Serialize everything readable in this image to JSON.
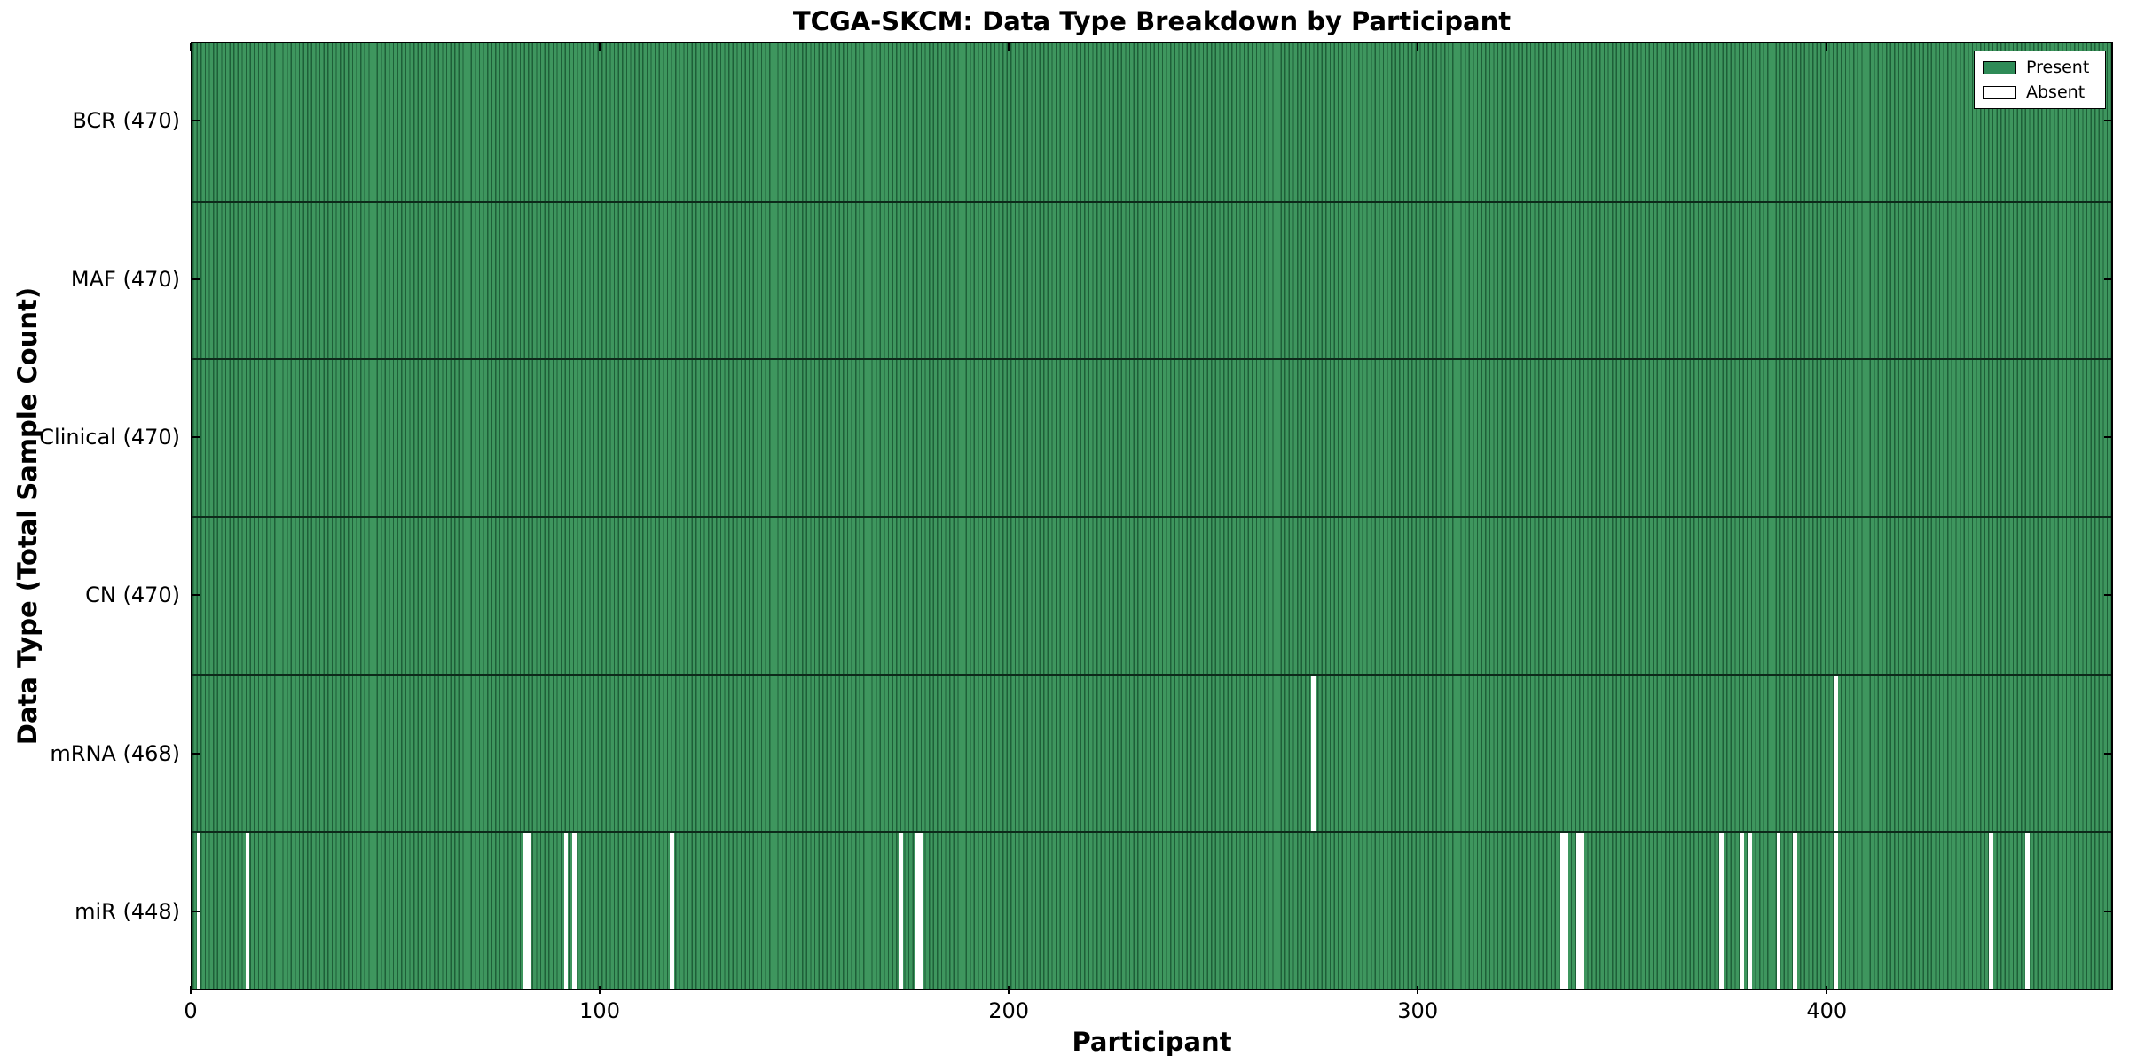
{
  "chart_data": {
    "type": "heatmap",
    "title": "TCGA-SKCM: Data Type Breakdown by Participant",
    "xlabel": "Participant",
    "ylabel": "Data Type (Total Sample Count)",
    "x_range": [
      0,
      470
    ],
    "x_ticks": [
      0,
      100,
      200,
      300,
      400
    ],
    "legend_position": "upper right",
    "legend": [
      {
        "label": "Present",
        "color": "#2e8b57"
      },
      {
        "label": "Absent",
        "color": "#ffffff"
      }
    ],
    "rows": [
      {
        "name": "BCR",
        "label": "BCR (470)",
        "total": 470,
        "absent_participants": []
      },
      {
        "name": "MAF",
        "label": "MAF (470)",
        "total": 470,
        "absent_participants": []
      },
      {
        "name": "Clinical",
        "label": "Clinical (470)",
        "total": 470,
        "absent_participants": []
      },
      {
        "name": "CN",
        "label": "CN (470)",
        "total": 470,
        "absent_participants": []
      },
      {
        "name": "mRNA",
        "label": "mRNA (468)",
        "total": 468,
        "absent_participants": [
          274,
          402
        ]
      },
      {
        "name": "miR",
        "label": "miR (448)",
        "total": 448,
        "absent_participants": [
          1,
          13,
          81,
          82,
          91,
          93,
          117,
          173,
          177,
          178,
          335,
          336,
          339,
          340,
          374,
          379,
          381,
          388,
          392,
          402,
          440,
          449
        ]
      }
    ],
    "colors": {
      "present": "#2e8b57",
      "present_light": "#3e965e",
      "bar_edge": "#1e5f38",
      "row_separator": "#0d2a1a",
      "absent": "#ffffff",
      "axis": "#000000"
    }
  }
}
